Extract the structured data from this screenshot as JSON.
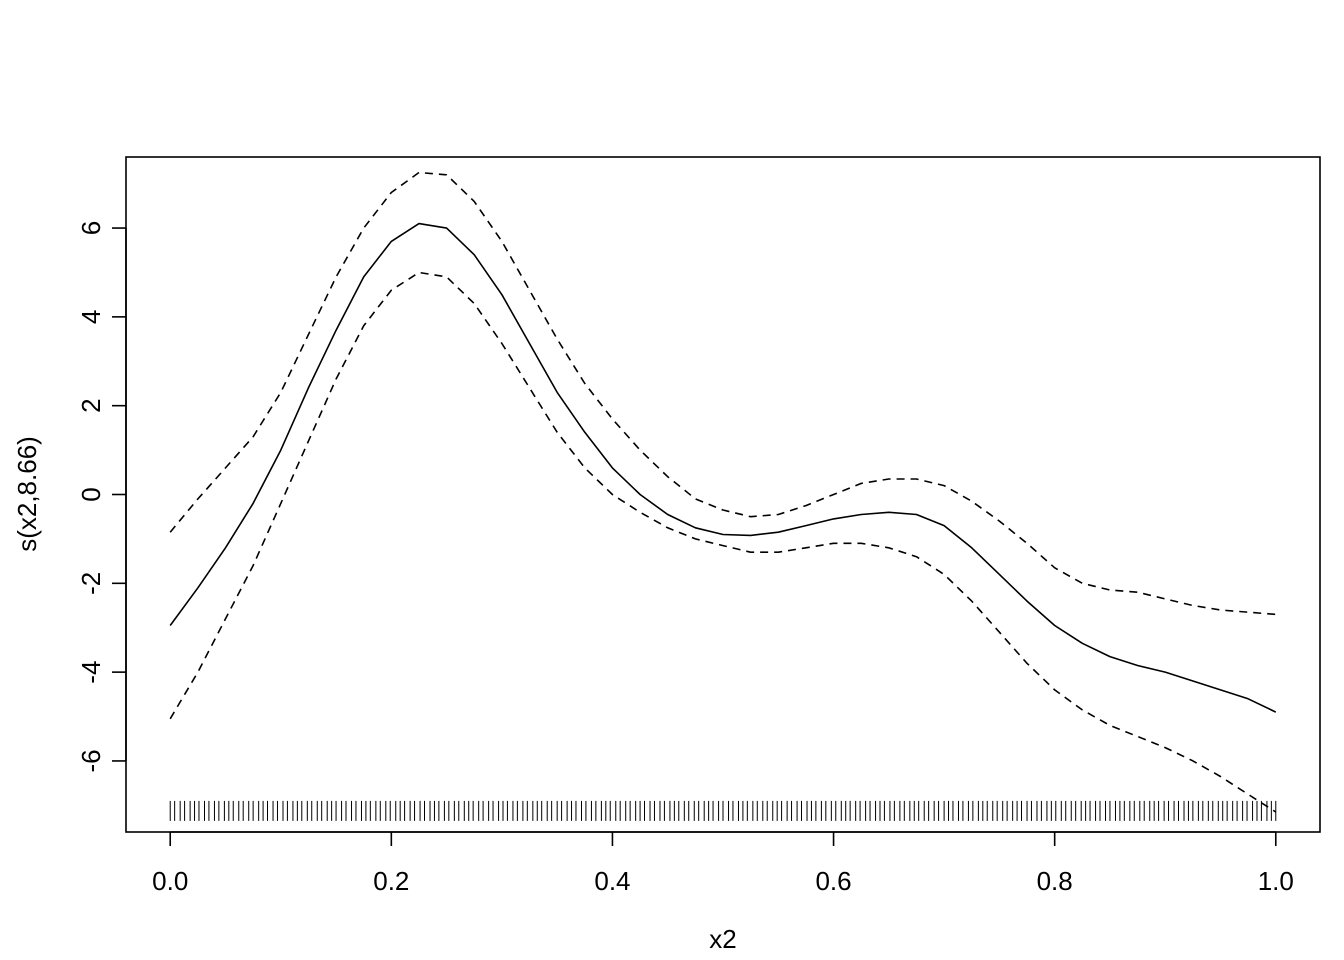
{
  "chart_data": {
    "type": "line",
    "title": "",
    "xlabel": "x2",
    "ylabel": "s(x2,8.66)",
    "xlim": [
      -0.04,
      1.04
    ],
    "ylim": [
      -7.6,
      7.6
    ],
    "x_ticks": [
      0.0,
      0.2,
      0.4,
      0.6,
      0.8,
      1.0
    ],
    "x_tick_labels": [
      "0.0",
      "0.2",
      "0.4",
      "0.6",
      "0.8",
      "1.0"
    ],
    "y_ticks": [
      6,
      4,
      2,
      0,
      -2,
      -4,
      -6
    ],
    "y_tick_labels": [
      "6",
      "4",
      "2",
      "0",
      "-2",
      "-4",
      "-6"
    ],
    "grid": false,
    "legend": "none",
    "x": [
      0.0,
      0.025,
      0.05,
      0.075,
      0.1,
      0.125,
      0.15,
      0.175,
      0.2,
      0.225,
      0.25,
      0.275,
      0.3,
      0.325,
      0.35,
      0.375,
      0.4,
      0.425,
      0.45,
      0.475,
      0.5,
      0.525,
      0.55,
      0.575,
      0.6,
      0.625,
      0.65,
      0.675,
      0.7,
      0.725,
      0.75,
      0.775,
      0.8,
      0.825,
      0.85,
      0.875,
      0.9,
      0.925,
      0.95,
      0.975,
      1.0
    ],
    "series": [
      {
        "role": "estimate",
        "style": "solid",
        "color": "#000000",
        "values": [
          -2.95,
          -2.1,
          -1.2,
          -0.2,
          1.0,
          2.4,
          3.7,
          4.9,
          5.7,
          6.1,
          6.0,
          5.4,
          4.5,
          3.4,
          2.3,
          1.4,
          0.6,
          0.0,
          -0.45,
          -0.75,
          -0.9,
          -0.92,
          -0.85,
          -0.7,
          -0.55,
          -0.45,
          -0.4,
          -0.45,
          -0.7,
          -1.2,
          -1.8,
          -2.4,
          -2.95,
          -3.35,
          -3.65,
          -3.85,
          -4.0,
          -4.2,
          -4.4,
          -4.6,
          -4.9
        ]
      },
      {
        "role": "upper",
        "style": "dashed",
        "color": "#000000",
        "values": [
          -0.85,
          -0.1,
          0.6,
          1.3,
          2.3,
          3.6,
          4.9,
          6.0,
          6.8,
          7.25,
          7.2,
          6.6,
          5.7,
          4.6,
          3.5,
          2.5,
          1.7,
          1.0,
          0.4,
          -0.1,
          -0.35,
          -0.5,
          -0.45,
          -0.25,
          0.0,
          0.25,
          0.35,
          0.35,
          0.2,
          -0.15,
          -0.6,
          -1.1,
          -1.65,
          -2.0,
          -2.15,
          -2.2,
          -2.35,
          -2.5,
          -2.6,
          -2.65,
          -2.7
        ]
      },
      {
        "role": "lower",
        "style": "dashed",
        "color": "#000000",
        "values": [
          -5.05,
          -4.0,
          -2.8,
          -1.6,
          -0.2,
          1.2,
          2.6,
          3.8,
          4.6,
          5.0,
          4.9,
          4.3,
          3.4,
          2.4,
          1.4,
          0.6,
          0.0,
          -0.4,
          -0.75,
          -1.0,
          -1.15,
          -1.3,
          -1.3,
          -1.2,
          -1.1,
          -1.1,
          -1.2,
          -1.4,
          -1.8,
          -2.4,
          -3.1,
          -3.8,
          -4.4,
          -4.85,
          -5.2,
          -5.45,
          -5.7,
          -6.0,
          -6.35,
          -6.75,
          -7.15
        ]
      }
    ],
    "rug": {
      "y": -7.35,
      "x": [
        0.0,
        0.004,
        0.009,
        0.013,
        0.018,
        0.022,
        0.026,
        0.031,
        0.035,
        0.04,
        0.044,
        0.049,
        0.053,
        0.057,
        0.062,
        0.066,
        0.071,
        0.075,
        0.08,
        0.084,
        0.088,
        0.093,
        0.097,
        0.102,
        0.106,
        0.111,
        0.115,
        0.119,
        0.124,
        0.128,
        0.133,
        0.137,
        0.142,
        0.146,
        0.15,
        0.155,
        0.159,
        0.164,
        0.168,
        0.173,
        0.177,
        0.181,
        0.186,
        0.19,
        0.195,
        0.199,
        0.204,
        0.208,
        0.212,
        0.217,
        0.221,
        0.226,
        0.23,
        0.235,
        0.239,
        0.243,
        0.248,
        0.252,
        0.257,
        0.261,
        0.266,
        0.27,
        0.274,
        0.279,
        0.283,
        0.288,
        0.292,
        0.297,
        0.301,
        0.305,
        0.31,
        0.314,
        0.319,
        0.323,
        0.328,
        0.332,
        0.336,
        0.341,
        0.345,
        0.35,
        0.354,
        0.359,
        0.363,
        0.367,
        0.372,
        0.376,
        0.381,
        0.385,
        0.39,
        0.394,
        0.398,
        0.403,
        0.407,
        0.412,
        0.416,
        0.421,
        0.425,
        0.429,
        0.434,
        0.438,
        0.443,
        0.447,
        0.452,
        0.456,
        0.46,
        0.465,
        0.469,
        0.474,
        0.478,
        0.483,
        0.487,
        0.491,
        0.496,
        0.5,
        0.505,
        0.509,
        0.514,
        0.518,
        0.522,
        0.527,
        0.531,
        0.536,
        0.54,
        0.545,
        0.549,
        0.553,
        0.558,
        0.562,
        0.567,
        0.571,
        0.576,
        0.58,
        0.584,
        0.589,
        0.593,
        0.598,
        0.602,
        0.607,
        0.611,
        0.615,
        0.62,
        0.624,
        0.629,
        0.633,
        0.638,
        0.642,
        0.646,
        0.651,
        0.655,
        0.66,
        0.664,
        0.669,
        0.673,
        0.677,
        0.682,
        0.686,
        0.691,
        0.695,
        0.7,
        0.704,
        0.708,
        0.713,
        0.717,
        0.722,
        0.726,
        0.731,
        0.735,
        0.739,
        0.744,
        0.748,
        0.753,
        0.757,
        0.762,
        0.766,
        0.77,
        0.775,
        0.779,
        0.784,
        0.788,
        0.793,
        0.797,
        0.801,
        0.806,
        0.81,
        0.815,
        0.819,
        0.824,
        0.828,
        0.832,
        0.837,
        0.841,
        0.846,
        0.85,
        0.855,
        0.859,
        0.863,
        0.868,
        0.872,
        0.877,
        0.881,
        0.886,
        0.89,
        0.894,
        0.899,
        0.903,
        0.908,
        0.912,
        0.917,
        0.921,
        0.925,
        0.93,
        0.934,
        0.939,
        0.943,
        0.948,
        0.952,
        0.956,
        0.961,
        0.965,
        0.97,
        0.974,
        0.979,
        0.983,
        0.987,
        0.992,
        0.996,
        1.0
      ]
    }
  }
}
